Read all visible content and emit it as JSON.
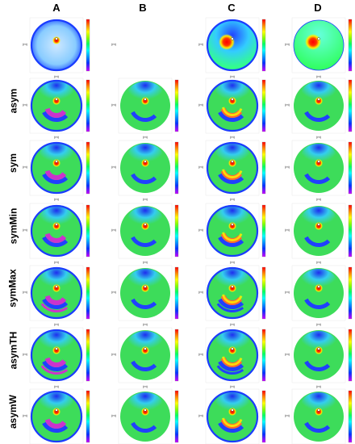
{
  "columns": [
    "A",
    "B",
    "C",
    "D"
  ],
  "rows": [
    "",
    "asym",
    "sym",
    "symMin",
    "symMax",
    "asymTH",
    "asymW"
  ],
  "axis_unit_label": "(m)",
  "colors": {
    "background_green": "#3ddc5a",
    "ring_blue": "#1a3cff",
    "band_blue": "#2040ff",
    "band_magenta": "#cc33cc",
    "hot_red": "#ff1a00",
    "hot_yellow": "#ffee00",
    "light_cyan": "#33ccff",
    "dark_blue": "#1a1aff",
    "colorbar": [
      "#ff0000",
      "#ff8800",
      "#ffff00",
      "#88ff00",
      "#00ff66",
      "#00ffff",
      "#0099ff",
      "#0033ff",
      "#6600ff",
      "#cc00ff"
    ]
  },
  "panels_missing": [
    {
      "row": 0,
      "col": 1
    }
  ]
}
